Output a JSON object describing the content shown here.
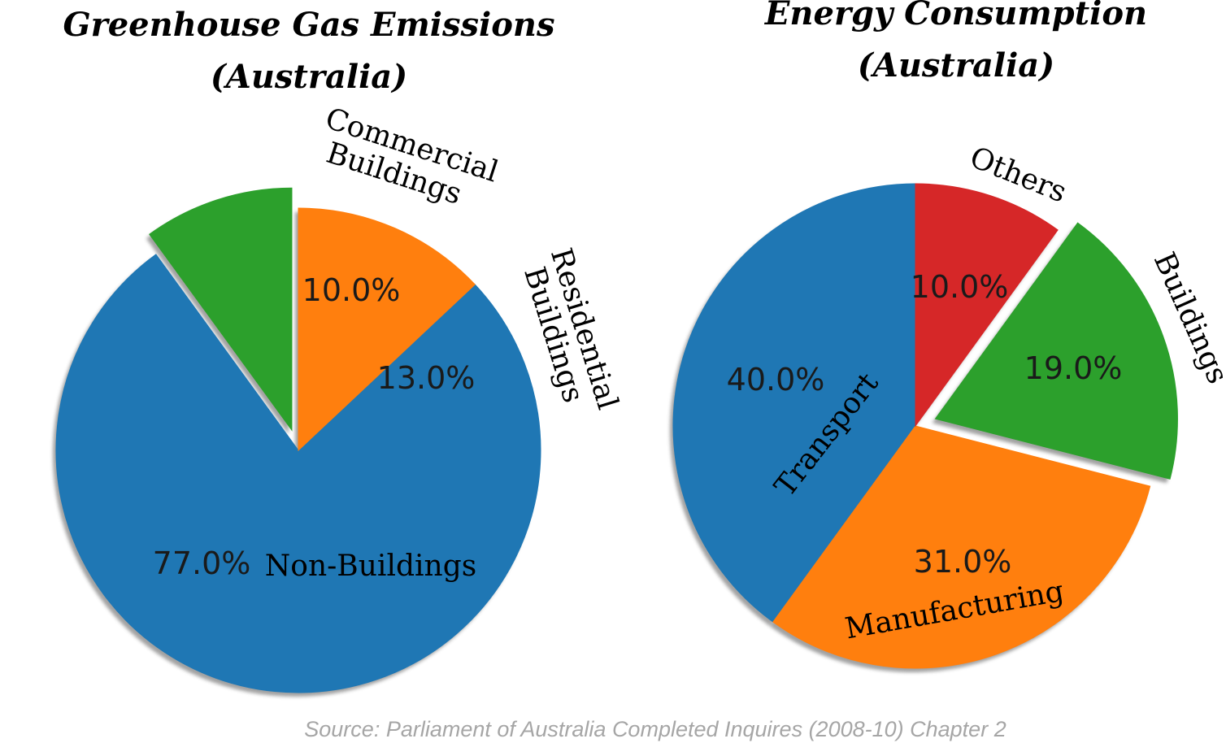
{
  "chart_data": [
    {
      "type": "pie",
      "title": [
        "Greenhouse Gas Emissions",
        "(Australia)"
      ],
      "start_angle": 90,
      "direction": "counterclockwise",
      "shadow": true,
      "slices": [
        {
          "label": "Commercial Buildings",
          "value": 10.0,
          "pct_text": "10.0%",
          "color": "#2ca02c",
          "exploded": true
        },
        {
          "label": "Non-Buildings",
          "value": 77.0,
          "pct_text": "77.0%",
          "color": "#1f77b4",
          "exploded": false
        },
        {
          "label": "Residential Buildings",
          "value": 13.0,
          "pct_text": "13.0%",
          "color": "#ff7f0e",
          "exploded": false
        }
      ]
    },
    {
      "type": "pie",
      "title": [
        "Energy Consumption",
        "(Australia)"
      ],
      "start_angle": 90,
      "direction": "counterclockwise",
      "shadow": true,
      "slices": [
        {
          "label": "Transport",
          "value": 40.0,
          "pct_text": "40.0%",
          "color": "#1f77b4",
          "exploded": false
        },
        {
          "label": "Manufacturing",
          "value": 31.0,
          "pct_text": "31.0%",
          "color": "#ff7f0e",
          "exploded": false
        },
        {
          "label": "Buildings",
          "value": 19.0,
          "pct_text": "19.0%",
          "color": "#2ca02c",
          "exploded": true
        },
        {
          "label": "Others",
          "value": 10.0,
          "pct_text": "10.0%",
          "color": "#d62728",
          "exploded": false
        }
      ]
    }
  ],
  "source": "Source: Parliament of Australia Completed Inquires (2008-10) Chapter 2"
}
